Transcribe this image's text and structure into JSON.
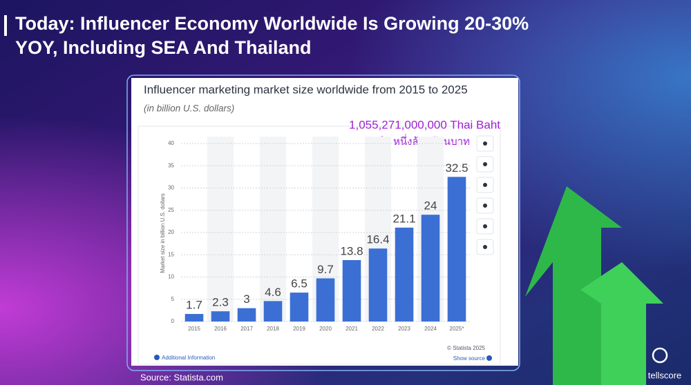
{
  "slide": {
    "title": [
      "Today: Influencer Economy Worldwide Is Growing 20-30%",
      "YOY, Including SEA And Thailand"
    ],
    "source": "Source: Statista.com",
    "logo": "tellscore"
  },
  "chart_data": {
    "type": "bar",
    "title": "Influencer marketing market size worldwide from 2015 to 2025",
    "subtitle": "(in billion U.S. dollars)",
    "y_label": "Market size in billion U.S. dollars",
    "categories": [
      "2015",
      "2016",
      "2017",
      "2018",
      "2019",
      "2020",
      "2021",
      "2022",
      "2023",
      "2024",
      "2025*"
    ],
    "values": [
      1.7,
      2.3,
      3,
      4.6,
      6.5,
      9.7,
      13.8,
      16.4,
      21.1,
      24,
      32.5
    ],
    "color": "#3b6fd4",
    "ylim": [
      0,
      40
    ],
    "yticks": [
      0,
      5,
      10,
      15,
      20,
      25,
      30,
      35,
      40
    ],
    "grid": true,
    "annotations": [
      "1,055,271,000,000 Thai Baht",
      "หรือ หนึ่งล้านล้านบาท"
    ],
    "copyright": "© Statista 2025",
    "additional_info": "Additional Information",
    "show_source": "Show source"
  }
}
